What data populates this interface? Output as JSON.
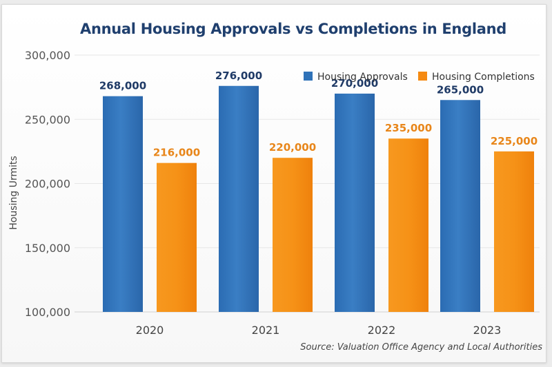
{
  "chart_data": {
    "type": "bar",
    "title": "Annual Housing Approvals vs Completions in England",
    "xlabel": "",
    "ylabel": "Housing Urmits",
    "categories": [
      "2020",
      "2021",
      "2022",
      "2023"
    ],
    "series": [
      {
        "name": "Housing Approvals",
        "color": "#2f72b8",
        "label_color": "#1f3a66",
        "values": [
          268000,
          276000,
          270000,
          265000
        ],
        "labels": [
          "268,000",
          "276,000",
          "270,000",
          "265,000"
        ]
      },
      {
        "name": "Housing Completions",
        "color": "#f58a12",
        "label_color": "#e8861a",
        "values": [
          216000,
          220000,
          235000,
          225000
        ],
        "labels": [
          "216,000",
          "220,000",
          "235,000",
          "225,000"
        ]
      }
    ],
    "ylim": [
      100000,
      300000
    ],
    "yticks": [
      100000,
      150000,
      200000,
      250000,
      300000
    ],
    "ytick_labels": [
      "100,000",
      "150,000",
      "200,000",
      "250,000",
      "300,000"
    ],
    "grid": true,
    "legend_position": "top-right",
    "source": "Source: Valuation Office Agency and Local Authorities"
  }
}
